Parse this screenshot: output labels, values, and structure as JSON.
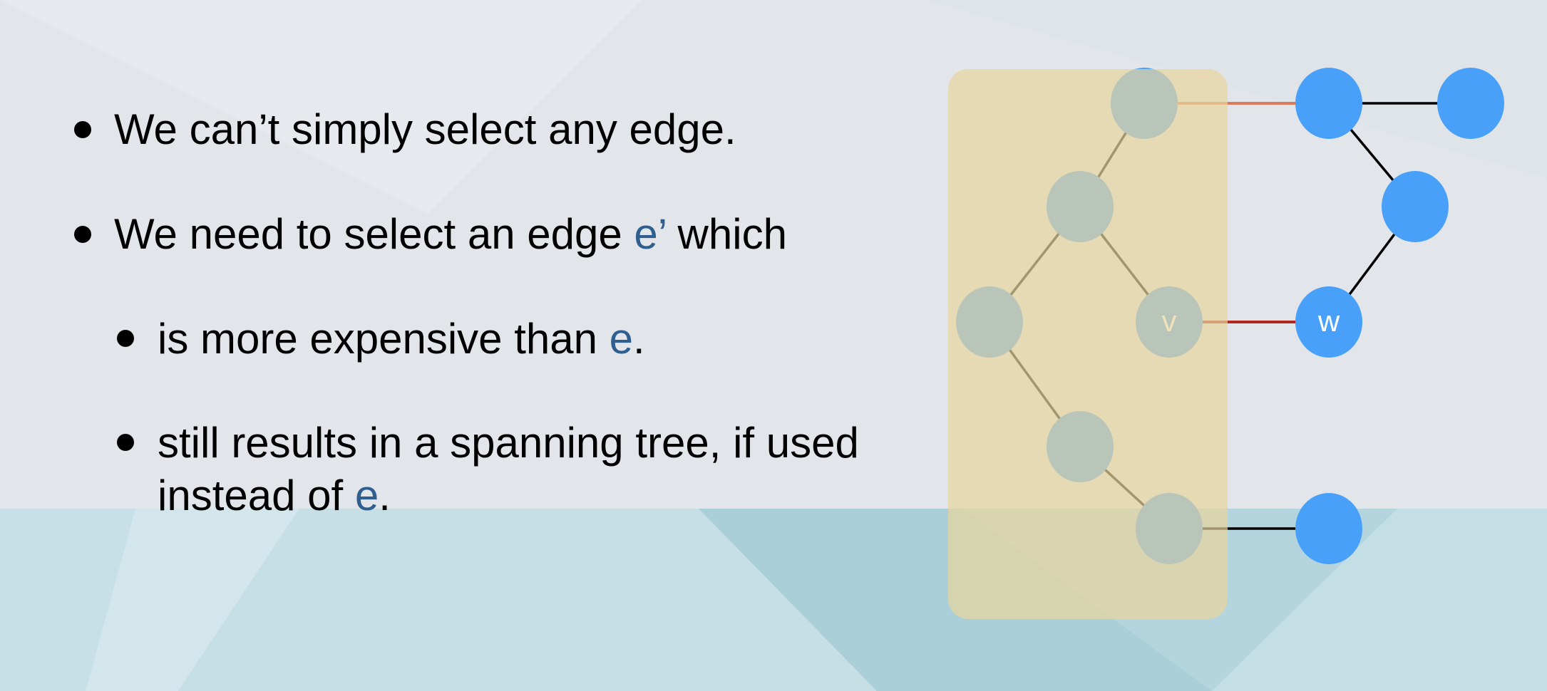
{
  "colors": {
    "background": "#e2e6ea",
    "band": "#b9d7df",
    "text": "#000000",
    "accent_text": "#2e5f8f",
    "highlight_box": "#e8d49c",
    "node": "#48a0f8",
    "edge": "#000000",
    "edge_red": "#b02a20",
    "edge_salmon": "#e0785a"
  },
  "bullets": {
    "b1": {
      "text": "We can’t simply select any edge."
    },
    "b2": {
      "before": "We need to select an edge ",
      "var": "e’",
      "after": " which"
    },
    "b3": {
      "before": "is more expensive than ",
      "var": "e",
      "after": "."
    },
    "b4": {
      "line1": "still results in a spanning tree, if used",
      "line2_before": "instead of ",
      "var": "e",
      "line2_after": "."
    }
  },
  "diagram": {
    "nodes": [
      {
        "id": "n1",
        "label": ""
      },
      {
        "id": "n2",
        "label": ""
      },
      {
        "id": "n3",
        "label": ""
      },
      {
        "id": "n4",
        "label": ""
      },
      {
        "id": "n5",
        "label": ""
      },
      {
        "id": "n6",
        "label": ""
      },
      {
        "id": "v",
        "label": "v"
      },
      {
        "id": "w",
        "label": "w"
      },
      {
        "id": "n7",
        "label": ""
      },
      {
        "id": "n8",
        "label": ""
      },
      {
        "id": "n9",
        "label": ""
      }
    ],
    "edges": [
      {
        "from": "n1",
        "to": "n2",
        "style": "salmon"
      },
      {
        "from": "n2",
        "to": "n3",
        "style": "normal"
      },
      {
        "from": "n1",
        "to": "n4",
        "style": "normal"
      },
      {
        "from": "n4",
        "to": "n6",
        "style": "normal"
      },
      {
        "from": "n4",
        "to": "v",
        "style": "normal"
      },
      {
        "from": "v",
        "to": "w",
        "style": "red"
      },
      {
        "from": "n2",
        "to": "n5",
        "style": "normal"
      },
      {
        "from": "n5",
        "to": "w",
        "style": "normal"
      },
      {
        "from": "n6",
        "to": "n7",
        "style": "normal"
      },
      {
        "from": "n7",
        "to": "n8",
        "style": "normal"
      },
      {
        "from": "n8",
        "to": "n9",
        "style": "normal"
      }
    ]
  }
}
